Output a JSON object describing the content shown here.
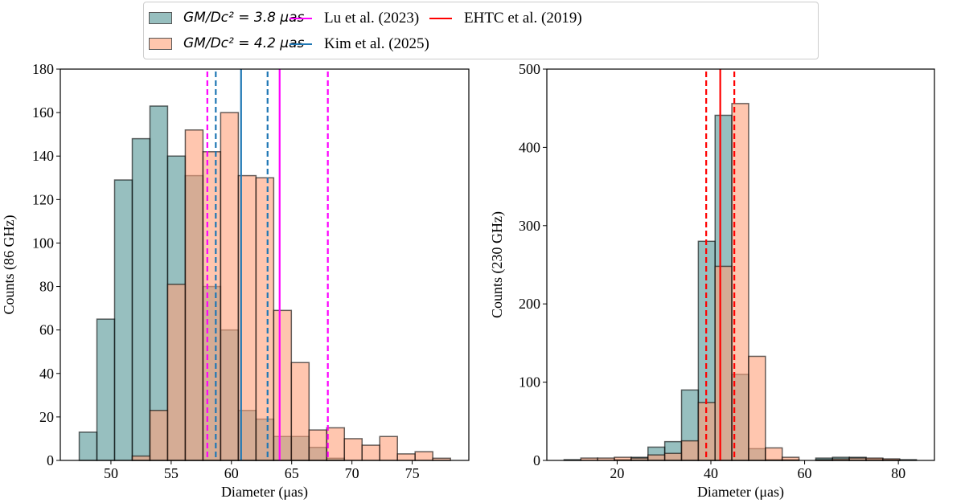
{
  "legend": {
    "items": [
      {
        "label": "GM/Dc² = 3.8 μas",
        "color": "#97bfbf"
      },
      {
        "label": "GM/Dc² = 4.2 μas",
        "color": "#ffc6ad"
      },
      {
        "label": "Lu et al. (2023)",
        "color": "#ff00ff"
      },
      {
        "label": "Kim et al. (2025)",
        "color": "#1f77b4"
      },
      {
        "label": "EHTC et al. (2019)",
        "color": "#ff0000"
      }
    ]
  },
  "chart_data": [
    {
      "type": "bar",
      "subtype": "histogram",
      "xlabel": "Diameter (μas)",
      "ylabel": "Counts (86 GHz)",
      "xlim": [
        45.8,
        79.7
      ],
      "ylim": [
        0,
        180
      ],
      "xticks": [
        50,
        55,
        60,
        65,
        70,
        75
      ],
      "yticks": [
        0,
        20,
        40,
        60,
        80,
        100,
        120,
        140,
        160,
        180
      ],
      "bin_start": 47.37,
      "bin_width": 1.467,
      "series": [
        {
          "name": "GM/Dc² = 3.8 μas",
          "color": "#2f7f80",
          "opacity": 0.5,
          "values": [
            13,
            65,
            129,
            148,
            163,
            140,
            131,
            80,
            60,
            23,
            19,
            11,
            11,
            6,
            1,
            0,
            0,
            0,
            0,
            0,
            0
          ]
        },
        {
          "name": "GM/Dc² = 4.2 μas",
          "color": "#ffa07a",
          "opacity": 0.6,
          "values": [
            0,
            0,
            0,
            2,
            23,
            81,
            152,
            142,
            160,
            131,
            130,
            69,
            45,
            14,
            15,
            10,
            7,
            11,
            3,
            4,
            1
          ]
        }
      ],
      "vlines": [
        {
          "series": "Lu et al. (2023)",
          "color": "#ff00ff",
          "center": 64.0,
          "bounds": [
            58.0,
            68.0
          ]
        },
        {
          "series": "Kim et al. (2025)",
          "color": "#1f77b4",
          "center": 60.8,
          "bounds": [
            58.7,
            63.0
          ]
        }
      ]
    },
    {
      "type": "bar",
      "subtype": "histogram",
      "xlabel": "Diameter (μas)",
      "ylabel": "Counts (230 GHz)",
      "xlim": [
        5.0,
        87.7
      ],
      "ylim": [
        0,
        500
      ],
      "xticks": [
        20,
        40,
        60,
        80
      ],
      "yticks": [
        0,
        100,
        200,
        300,
        400,
        500
      ],
      "bin_start": 8.68,
      "bin_width": 3.58,
      "series": [
        {
          "name": "GM/Dc² = 3.8 μas",
          "color": "#2f7f80",
          "opacity": 0.5,
          "values": [
            1,
            0,
            0,
            1,
            4,
            17,
            24,
            90,
            280,
            441,
            110,
            15,
            1,
            1,
            0,
            3,
            4,
            4,
            2,
            1,
            1
          ]
        },
        {
          "name": "GM/Dc² = 4.2 μas",
          "color": "#ffa07a",
          "opacity": 0.6,
          "values": [
            0,
            3,
            3,
            4,
            3,
            7,
            9,
            25,
            74,
            248,
            456,
            133,
            16,
            4,
            0,
            1,
            2,
            3,
            3,
            2,
            0
          ]
        }
      ],
      "vlines": [
        {
          "series": "EHTC et al. (2019)",
          "color": "#ff0000",
          "center": 42.0,
          "bounds": [
            39.0,
            45.0
          ]
        }
      ]
    }
  ]
}
